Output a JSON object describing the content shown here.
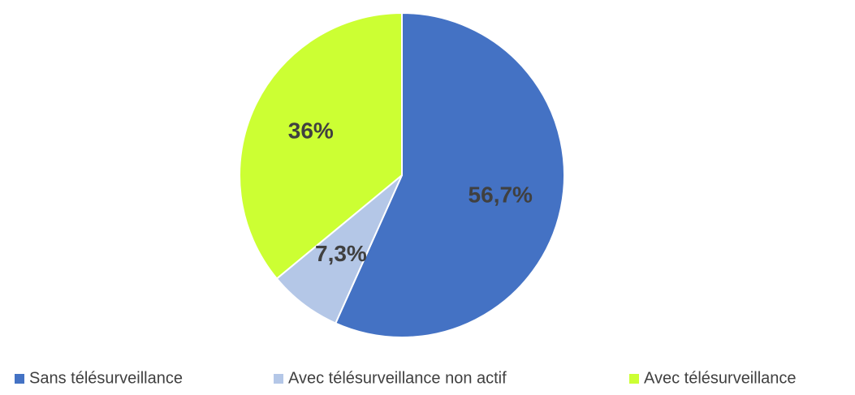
{
  "chart_data": {
    "type": "pie",
    "categories": [
      "Sans télésurveillance",
      "Avec télésurveillance non actif",
      "Avec télésurveillance"
    ],
    "values": [
      56.7,
      7.3,
      36
    ],
    "value_labels": [
      "56,7%",
      "7,3%",
      "36%"
    ],
    "colors": [
      "#4472c4",
      "#b4c7e7",
      "#ccff33"
    ],
    "legend": "bottom"
  }
}
